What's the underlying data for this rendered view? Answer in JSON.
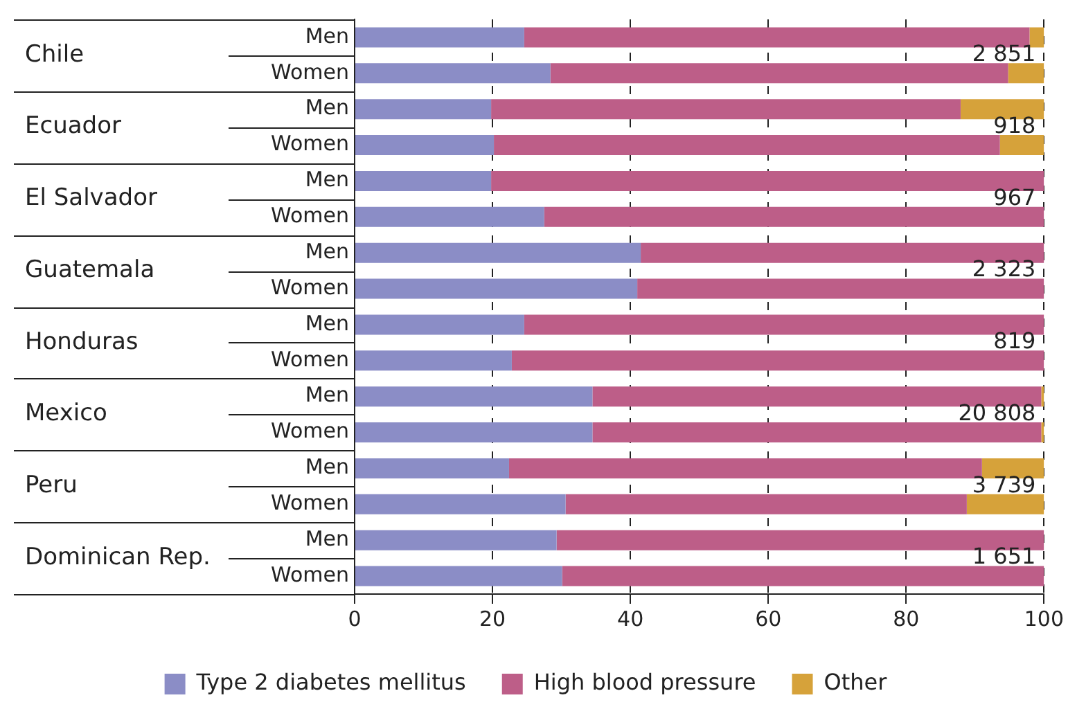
{
  "chart_data": {
    "type": "bar",
    "orientation": "horizontal",
    "stacked": true,
    "categories": [
      "Men",
      "Women",
      "Men",
      "Women",
      "Men",
      "Women",
      "Men",
      "Women",
      "Men",
      "Women",
      "Men",
      "Women",
      "Men",
      "Women",
      "Men",
      "Women"
    ],
    "series": [
      {
        "name": "Type 2 diabetes mellitus",
        "color": "#8b8dc6",
        "values": [
          24.6,
          28.4,
          19.8,
          20.2,
          19.8,
          27.5,
          41.5,
          41.0,
          24.6,
          22.8,
          34.5,
          34.5,
          22.4,
          30.6,
          29.3,
          30.1
        ]
      },
      {
        "name": "High blood pressure",
        "color": "#bd5e88",
        "values": [
          73.3,
          66.4,
          68.1,
          73.4,
          80.2,
          72.5,
          58.5,
          59.0,
          75.4,
          77.2,
          65.1,
          65.1,
          68.6,
          58.2,
          70.7,
          69.9
        ]
      },
      {
        "name": "Other",
        "color": "#d6a23a",
        "values": [
          2.1,
          5.2,
          12.1,
          6.4,
          0,
          0,
          0,
          0,
          0,
          0,
          0.4,
          0.4,
          9.0,
          11.2,
          0,
          0
        ]
      }
    ],
    "xlim": [
      0,
      100
    ],
    "xticks": [
      0,
      20,
      40,
      60,
      80,
      100
    ],
    "grid": "x",
    "legend": "bottom",
    "annotations": [
      "Chile",
      "Ecuador",
      "El Salvador",
      "Guatemala",
      "Honduras",
      "Mexico",
      "Peru",
      "Dominican Rep.",
      "2 851",
      "918",
      "967",
      "2 323",
      "819",
      "20 808",
      "3 739",
      "1 651"
    ]
  }
}
